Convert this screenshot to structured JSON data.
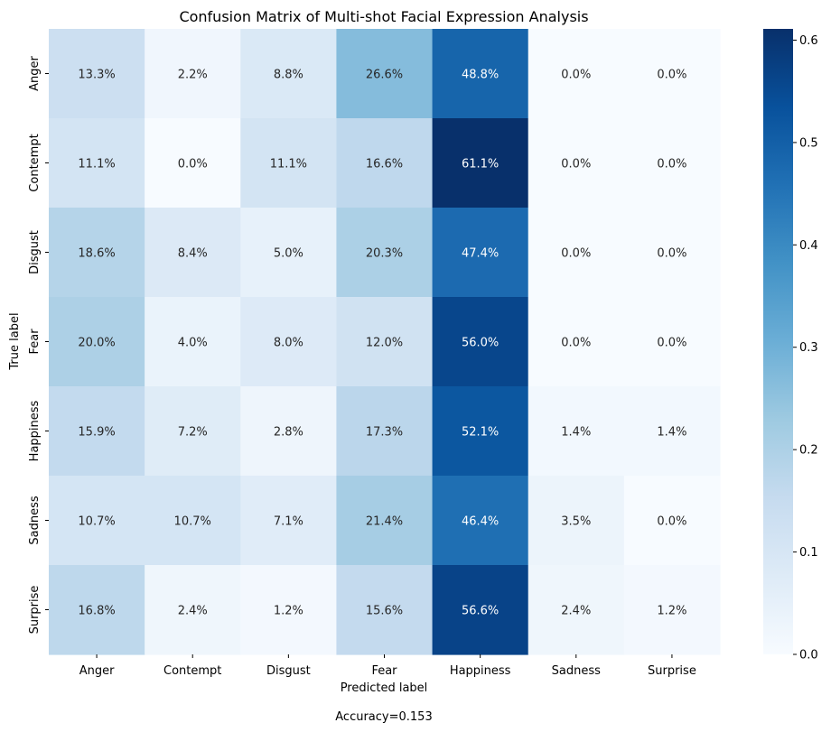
{
  "chart_data": {
    "type": "heatmap",
    "title": "Confusion Matrix of Multi-shot Facial Expression Analysis",
    "xlabel": "Predicted label",
    "ylabel": "True label",
    "x_categories": [
      "Anger",
      "Contempt",
      "Disgust",
      "Fear",
      "Happiness",
      "Sadness",
      "Surprise"
    ],
    "y_categories": [
      "Anger",
      "Contempt",
      "Disgust",
      "Fear",
      "Happiness",
      "Sadness",
      "Surprise"
    ],
    "values": [
      [
        0.133,
        0.022,
        0.088,
        0.266,
        0.488,
        0.0,
        0.0
      ],
      [
        0.111,
        0.0,
        0.111,
        0.166,
        0.611,
        0.0,
        0.0
      ],
      [
        0.186,
        0.084,
        0.05,
        0.203,
        0.474,
        0.0,
        0.0
      ],
      [
        0.2,
        0.04,
        0.08,
        0.12,
        0.56,
        0.0,
        0.0
      ],
      [
        0.159,
        0.072,
        0.028,
        0.173,
        0.521,
        0.014,
        0.014
      ],
      [
        0.107,
        0.107,
        0.071,
        0.214,
        0.464,
        0.035,
        0.0
      ],
      [
        0.168,
        0.024,
        0.012,
        0.156,
        0.566,
        0.024,
        0.012
      ]
    ],
    "cell_labels": [
      [
        "13.3%",
        "2.2%",
        "8.8%",
        "26.6%",
        "48.8%",
        "0.0%",
        "0.0%"
      ],
      [
        "11.1%",
        "0.0%",
        "11.1%",
        "16.6%",
        "61.1%",
        "0.0%",
        "0.0%"
      ],
      [
        "18.6%",
        "8.4%",
        "5.0%",
        "20.3%",
        "47.4%",
        "0.0%",
        "0.0%"
      ],
      [
        "20.0%",
        "4.0%",
        "8.0%",
        "12.0%",
        "56.0%",
        "0.0%",
        "0.0%"
      ],
      [
        "15.9%",
        "7.2%",
        "2.8%",
        "17.3%",
        "52.1%",
        "1.4%",
        "1.4%"
      ],
      [
        "10.7%",
        "10.7%",
        "7.1%",
        "21.4%",
        "46.4%",
        "3.5%",
        "0.0%"
      ],
      [
        "16.8%",
        "2.4%",
        "1.2%",
        "15.6%",
        "56.6%",
        "2.4%",
        "1.2%"
      ]
    ],
    "colorbar": {
      "colormap": "Blues",
      "range": [
        0.0,
        0.611
      ],
      "ticks": [
        0.0,
        0.1,
        0.2,
        0.3,
        0.4,
        0.5,
        0.6
      ],
      "tick_labels": [
        "0.0",
        "0.1",
        "0.2",
        "0.3",
        "0.4",
        "0.5",
        "0.6"
      ]
    },
    "grid": false,
    "legend": "colorbar-right"
  },
  "footer": {
    "accuracy_label": "Accuracy=0.153"
  }
}
